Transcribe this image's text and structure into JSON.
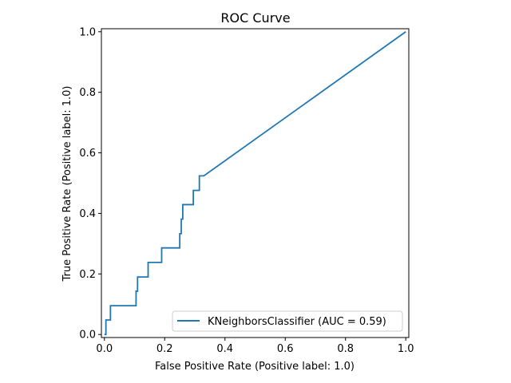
{
  "chart_data": {
    "type": "line",
    "title": "ROC Curve",
    "xlabel": "False Positive Rate (Positive label: 1.0)",
    "ylabel": "True Positive Rate (Positive label: 1.0)",
    "xlim": [
      -0.01,
      1.01
    ],
    "ylim": [
      -0.01,
      1.01
    ],
    "xticks": [
      0.0,
      0.2,
      0.4,
      0.6,
      0.8,
      1.0
    ],
    "yticks": [
      0.0,
      0.2,
      0.4,
      0.6,
      0.8,
      1.0
    ],
    "xtick_labels": [
      "0.0",
      "0.2",
      "0.4",
      "0.6",
      "0.8",
      "1.0"
    ],
    "ytick_labels": [
      "0.0",
      "0.2",
      "0.4",
      "0.6",
      "0.8",
      "1.0"
    ],
    "grid": false,
    "legend_position": "lower-right",
    "series": [
      {
        "name": "KNeighborsClassifier (AUC = 0.59)",
        "color": "#1f77b4",
        "x": [
          0,
          0.005,
          0.005,
          0.02,
          0.02,
          0.105,
          0.105,
          0.11,
          0.11,
          0.145,
          0.145,
          0.19,
          0.19,
          0.25,
          0.25,
          0.255,
          0.255,
          0.26,
          0.26,
          0.295,
          0.295,
          0.315,
          0.315,
          0.33,
          1.0
        ],
        "y": [
          0,
          0,
          0.048,
          0.048,
          0.095,
          0.095,
          0.143,
          0.143,
          0.19,
          0.19,
          0.238,
          0.238,
          0.286,
          0.286,
          0.333,
          0.333,
          0.381,
          0.381,
          0.429,
          0.429,
          0.476,
          0.476,
          0.524,
          0.524,
          1.0
        ]
      }
    ]
  }
}
